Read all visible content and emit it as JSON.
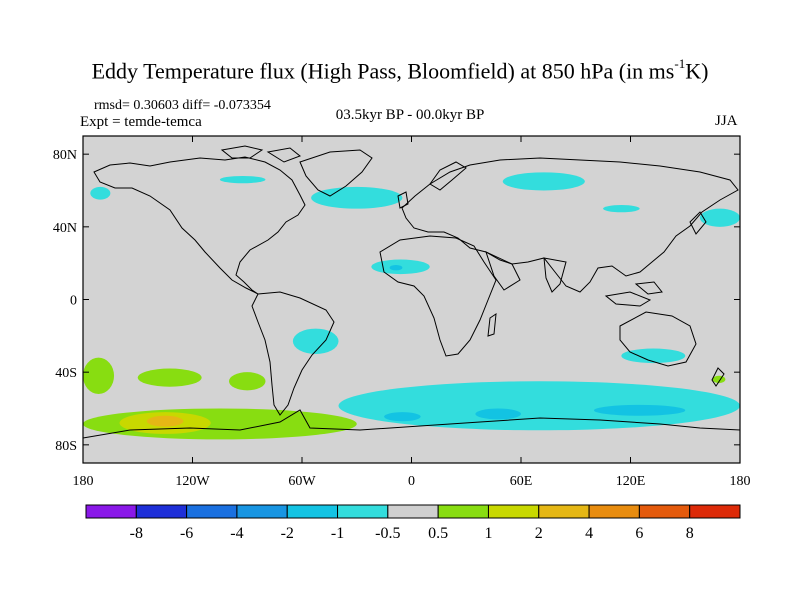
{
  "title": {
    "main": "Eddy Temperature flux (High Pass, Bloomfield) at 850 hPa (in ms",
    "sup": "-1",
    "tail": "K)"
  },
  "stats": "rmsd= 0.30603 diff= -0.073354",
  "experiment": "Expt = temde-temca",
  "period": "03.5kyr BP - 00.0kyr BP",
  "season": "JJA",
  "map": {
    "projection": "cylindrical-equidistant",
    "lon_range": [
      -180,
      180
    ],
    "lat_range": [
      -90,
      90
    ],
    "background_color": "#d3d3d3",
    "x_ticks": [
      {
        "lon": -180,
        "label": "180"
      },
      {
        "lon": -120,
        "label": "120W"
      },
      {
        "lon": -60,
        "label": "60W"
      },
      {
        "lon": 0,
        "label": "0"
      },
      {
        "lon": 60,
        "label": "60E"
      },
      {
        "lon": 120,
        "label": "120E"
      },
      {
        "lon": 180,
        "label": "180"
      }
    ],
    "y_ticks": [
      {
        "lat": 80,
        "label": "80N"
      },
      {
        "lat": 40,
        "label": "40N"
      },
      {
        "lat": 0,
        "label": "0"
      },
      {
        "lat": -40,
        "label": "40S"
      },
      {
        "lat": -80,
        "label": "80S"
      }
    ],
    "anomaly_regions": [
      {
        "level": "-1 to -0.5",
        "color": "#33dddd",
        "lon": [
          -176,
          -165
        ],
        "lat": [
          62,
          55
        ]
      },
      {
        "level": "-1 to -0.5",
        "color": "#33dddd",
        "lon": [
          -105,
          -80
        ],
        "lat": [
          68,
          64
        ]
      },
      {
        "level": "-1 to -0.5",
        "color": "#33dddd",
        "lon": [
          -55,
          -5
        ],
        "lat": [
          62,
          50
        ]
      },
      {
        "level": "-1 to -0.5",
        "color": "#33dddd",
        "lon": [
          50,
          95
        ],
        "lat": [
          70,
          60
        ]
      },
      {
        "level": "-1 to -0.5",
        "color": "#33dddd",
        "lon": [
          105,
          125
        ],
        "lat": [
          52,
          48
        ]
      },
      {
        "level": "-1 to -0.5",
        "color": "#33dddd",
        "lon": [
          158,
          180
        ],
        "lat": [
          50,
          40
        ]
      },
      {
        "level": "-1 to -0.5",
        "color": "#33dddd",
        "lon": [
          -22,
          10
        ],
        "lat": [
          22,
          14
        ]
      },
      {
        "level": "-2 to -1",
        "color": "#13c3e3",
        "lon": [
          -12,
          -5
        ],
        "lat": [
          19,
          16
        ]
      },
      {
        "level": "-1 to -0.5",
        "color": "#33dddd",
        "lon": [
          -65,
          -40
        ],
        "lat": [
          -16,
          -30
        ]
      },
      {
        "level": "-1 to -0.5",
        "color": "#33dddd",
        "lon": [
          -40,
          180
        ],
        "lat": [
          -45,
          -72
        ]
      },
      {
        "level": "-2 to -1",
        "color": "#13c3e3",
        "lon": [
          -15,
          5
        ],
        "lat": [
          -62,
          -67
        ]
      },
      {
        "level": "-2 to -1",
        "color": "#13c3e3",
        "lon": [
          35,
          60
        ],
        "lat": [
          -60,
          -66
        ]
      },
      {
        "level": "-2 to -1",
        "color": "#13c3e3",
        "lon": [
          100,
          150
        ],
        "lat": [
          -58,
          -64
        ]
      },
      {
        "level": "-1 to -0.5",
        "color": "#33dddd",
        "lon": [
          115,
          150
        ],
        "lat": [
          -27,
          -35
        ]
      },
      {
        "level": "0.5 to 1",
        "color": "#88dd11",
        "lon": [
          -180,
          -163
        ],
        "lat": [
          -32,
          -52
        ]
      },
      {
        "level": "0.5 to 1",
        "color": "#88dd11",
        "lon": [
          -150,
          -115
        ],
        "lat": [
          -38,
          -48
        ]
      },
      {
        "level": "0.5 to 1",
        "color": "#88dd11",
        "lon": [
          -100,
          -80
        ],
        "lat": [
          -40,
          -50
        ]
      },
      {
        "level": "0.5 to 1",
        "color": "#88dd11",
        "lon": [
          -180,
          -30
        ],
        "lat": [
          -60,
          -77
        ]
      },
      {
        "level": "1 to 2",
        "color": "#c8d800",
        "lon": [
          -160,
          -110
        ],
        "lat": [
          -62,
          -74
        ]
      },
      {
        "level": "2 to 4",
        "color": "#e5b715",
        "lon": [
          -145,
          -125
        ],
        "lat": [
          -64,
          -70
        ]
      },
      {
        "level": "0.5 to 1",
        "color": "#88dd11",
        "lon": [
          165,
          172
        ],
        "lat": [
          -42,
          -46
        ]
      }
    ]
  },
  "colorbar": {
    "colors": [
      "#8a18e8",
      "#1e2fd8",
      "#1a70e0",
      "#1895e2",
      "#13c3e3",
      "#33dddd",
      "#cfcfcf",
      "#88dd11",
      "#c8d800",
      "#e5b715",
      "#e88c0f",
      "#e45a0c",
      "#dd2a08"
    ],
    "labels": [
      "-8",
      "-6",
      "-4",
      "-2",
      "-1",
      "-0.5",
      "0.5",
      "1",
      "2",
      "4",
      "6",
      "8"
    ]
  }
}
